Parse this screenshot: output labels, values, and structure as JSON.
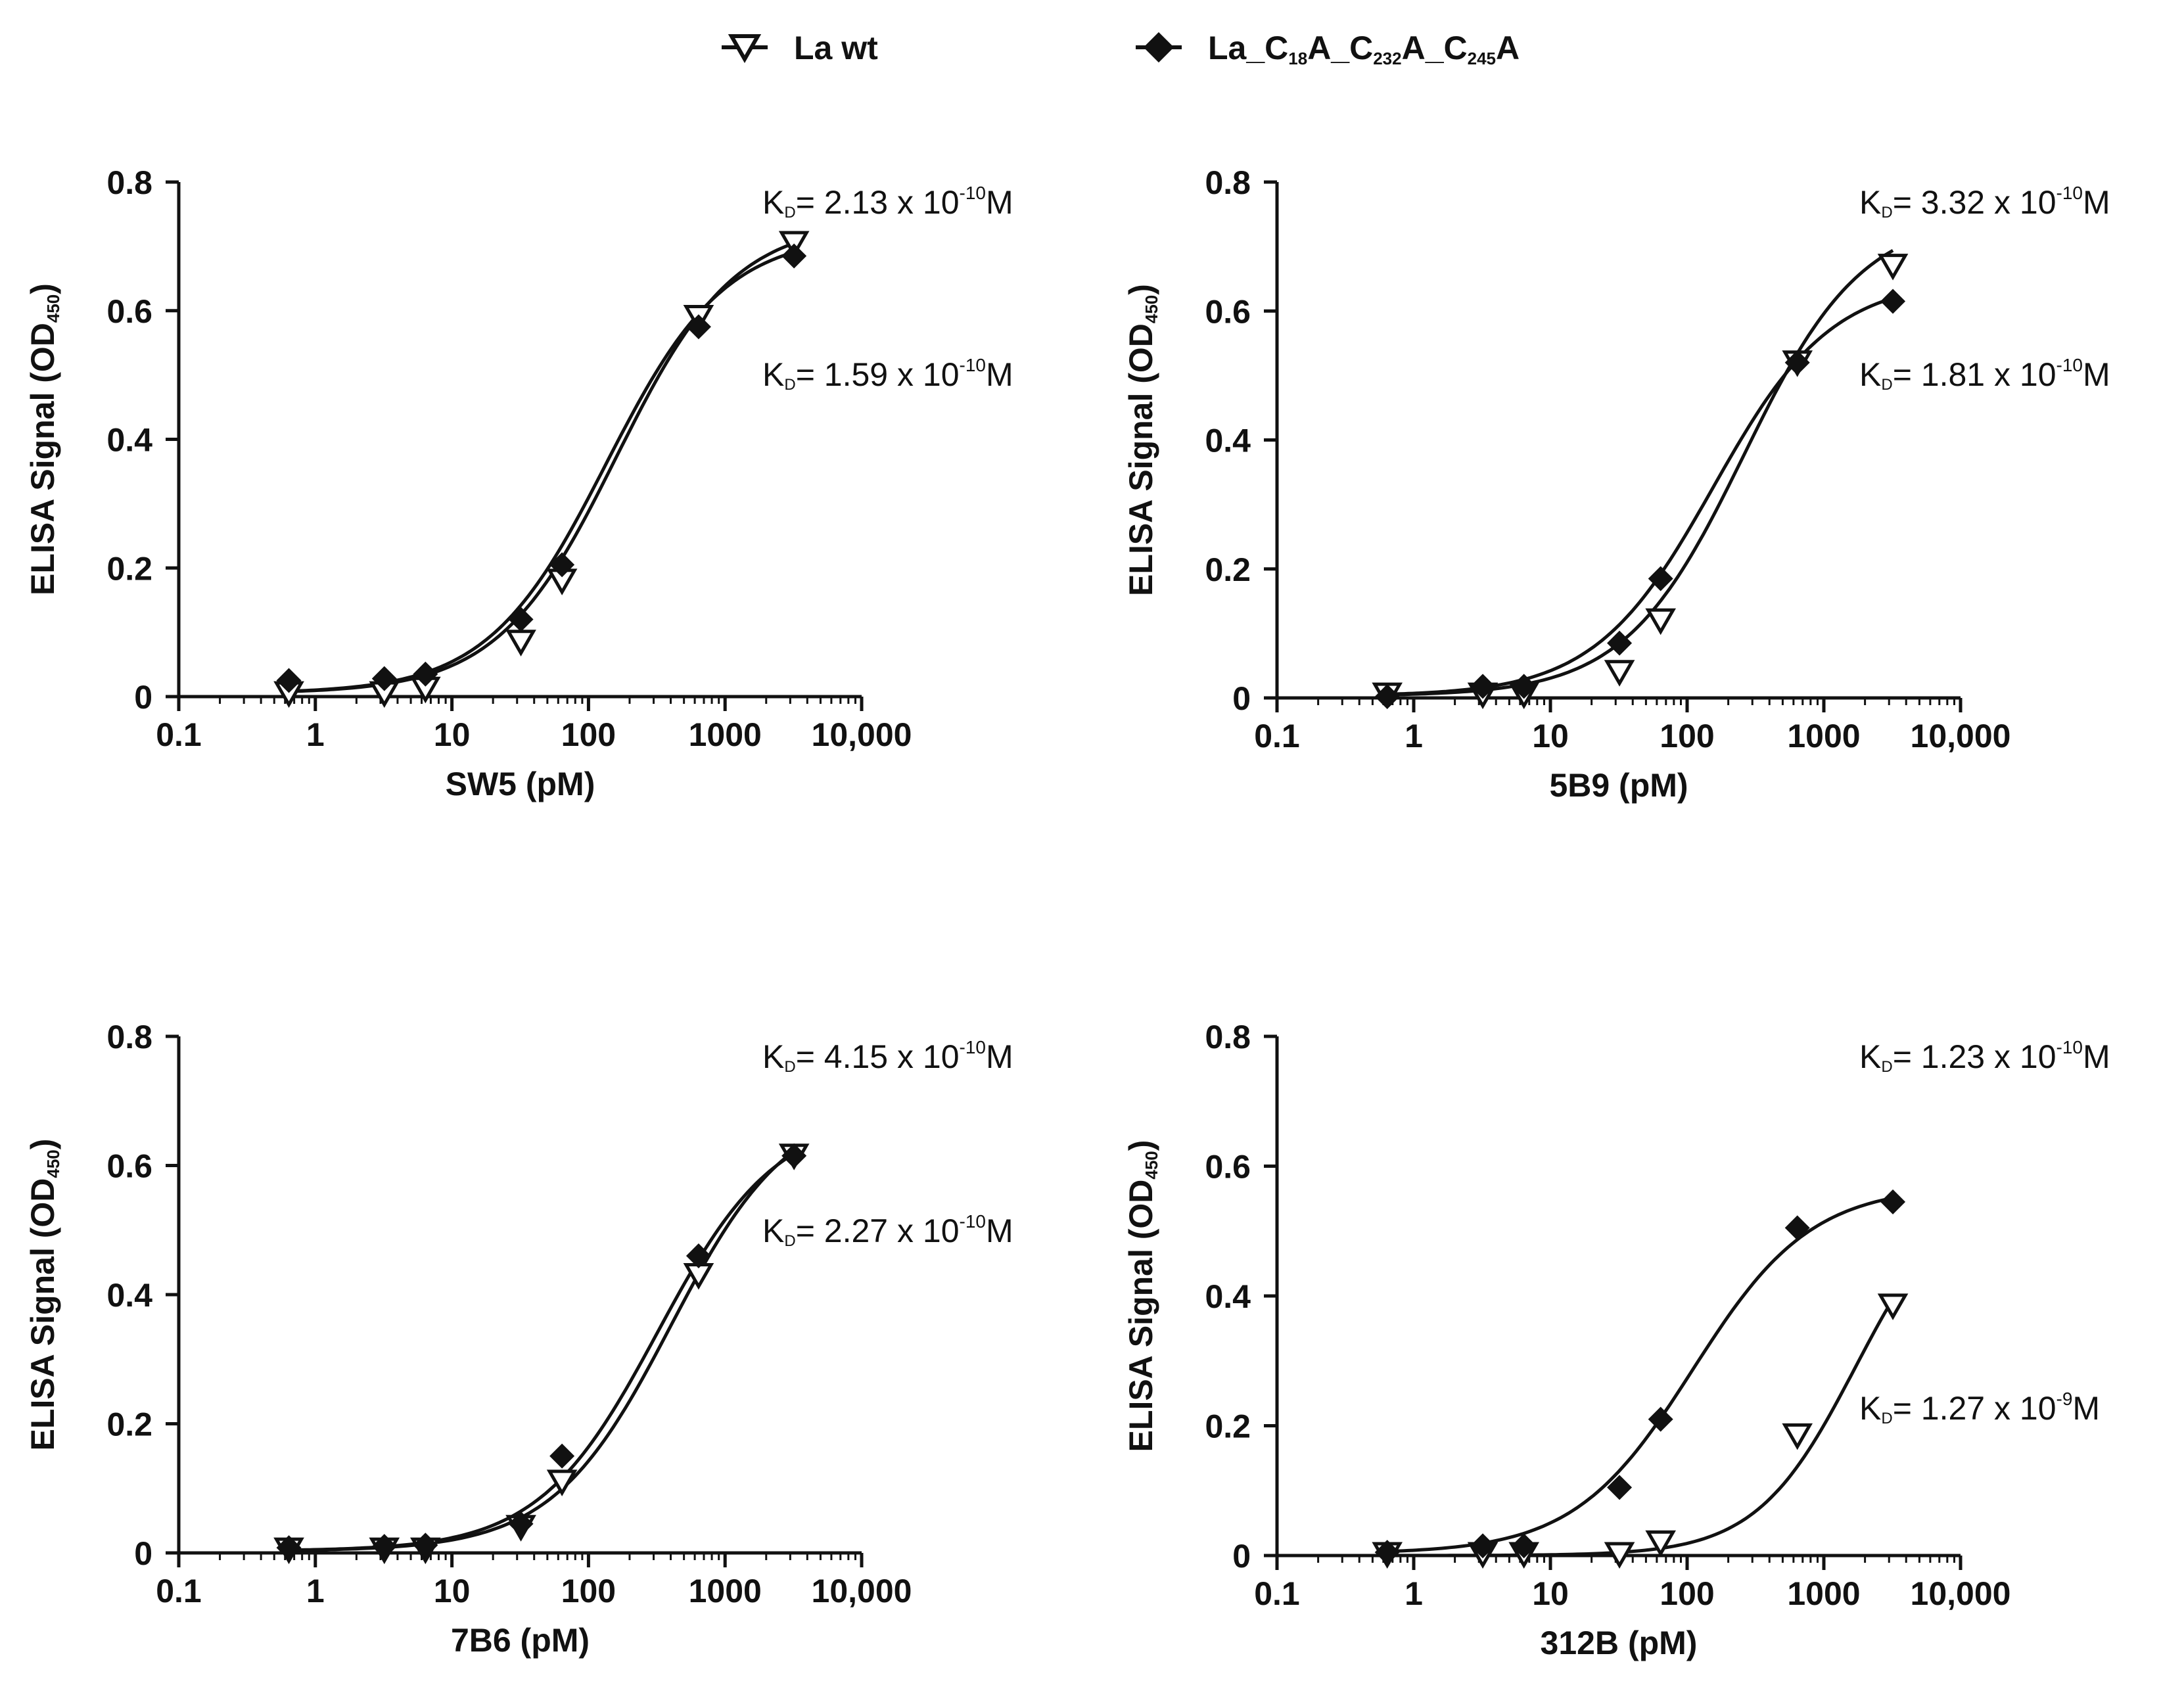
{
  "legend": {
    "series": [
      {
        "name": "La wt",
        "marker": "triangle-down-open"
      },
      {
        "name": "La_C18A_C232A_C245A",
        "marker": "diamond-filled",
        "subscripts": [
          "18",
          "232",
          "245"
        ]
      }
    ]
  },
  "chart_data": [
    {
      "type": "scatter",
      "scale": "log-x",
      "xlabel": "SW5 (pM)",
      "ylabel": "ELISA Signal (OD450)",
      "xlim": [
        0.1,
        10000
      ],
      "ylim": [
        0,
        0.8
      ],
      "x_ticks": [
        0.1,
        1,
        10,
        100,
        1000,
        10000
      ],
      "x_tick_labels": [
        "0.1",
        "1",
        "10",
        "100",
        "1000",
        "10,000"
      ],
      "y_ticks": [
        0,
        0.2,
        0.4,
        0.6,
        0.8
      ],
      "y_tick_labels": [
        "0",
        "0.2",
        "0.4",
        "0.6",
        "0.8"
      ],
      "x": [
        0.64,
        3.2,
        6.4,
        32,
        64,
        640,
        3200
      ],
      "series": [
        {
          "name": "La wt",
          "marker": "triangle-down-open",
          "values": [
            0.005,
            0.005,
            0.012,
            0.085,
            0.18,
            0.59,
            0.705
          ],
          "fit": {
            "bottom": 0.005,
            "top": 0.74,
            "ec50": 160,
            "hill": 1.0
          }
        },
        {
          "name": "La_C18A_C232A_C245A",
          "marker": "diamond-filled",
          "values": [
            0.025,
            0.028,
            0.035,
            0.12,
            0.205,
            0.575,
            0.685
          ],
          "fit": {
            "bottom": 0.005,
            "top": 0.72,
            "ec50": 135,
            "hill": 1.0
          }
        }
      ],
      "annotations": [
        {
          "label": "KD",
          "text": "= 2.13 x 10",
          "exp": "-10",
          "unit": "M"
        },
        {
          "label": "KD",
          "text": "= 1.59 x 10",
          "exp": "-10",
          "unit": "M"
        }
      ]
    },
    {
      "type": "scatter",
      "scale": "log-x",
      "xlabel": "5B9 (pM)",
      "ylabel": "ELISA Signal (OD450)",
      "xlim": [
        0.1,
        10000
      ],
      "ylim": [
        0,
        0.8
      ],
      "x_ticks": [
        0.1,
        1,
        10,
        100,
        1000,
        10000
      ],
      "x_tick_labels": [
        "0.1",
        "1",
        "10",
        "100",
        "1000",
        "10,000"
      ],
      "y_ticks": [
        0,
        0.2,
        0.4,
        0.6,
        0.8
      ],
      "y_tick_labels": [
        "0",
        "0.2",
        "0.4",
        "0.6",
        "0.8"
      ],
      "x": [
        0.64,
        3.2,
        6.4,
        32,
        64,
        640,
        3200
      ],
      "series": [
        {
          "name": "La wt",
          "marker": "triangle-down-open",
          "values": [
            0.005,
            0.005,
            0.005,
            0.04,
            0.12,
            0.52,
            0.67
          ],
          "fit": {
            "bottom": 0.003,
            "top": 0.75,
            "ec50": 260,
            "hill": 1.0
          }
        },
        {
          "name": "La_C18A_C232A_C245A",
          "marker": "diamond-filled",
          "values": [
            0.002,
            0.018,
            0.018,
            0.085,
            0.185,
            0.52,
            0.615
          ],
          "fit": {
            "bottom": 0.003,
            "top": 0.65,
            "ec50": 155,
            "hill": 1.0
          }
        }
      ],
      "annotations": [
        {
          "label": "KD",
          "text": "= 3.32 x 10",
          "exp": "-10",
          "unit": "M"
        },
        {
          "label": "KD",
          "text": "= 1.81 x 10",
          "exp": "-10",
          "unit": "M"
        }
      ]
    },
    {
      "type": "scatter",
      "scale": "log-x",
      "xlabel": "7B6 (pM)",
      "ylabel": "ELISA Signal (OD450)",
      "xlim": [
        0.1,
        10000
      ],
      "ylim": [
        0,
        0.8
      ],
      "x_ticks": [
        0.1,
        1,
        10,
        100,
        1000,
        10000
      ],
      "x_tick_labels": [
        "0.1",
        "1",
        "10",
        "100",
        "1000",
        "10,000"
      ],
      "y_ticks": [
        0,
        0.2,
        0.4,
        0.6,
        0.8
      ],
      "y_tick_labels": [
        "0",
        "0.2",
        "0.4",
        "0.6",
        "0.8"
      ],
      "x": [
        0.64,
        3.2,
        6.4,
        32,
        64,
        640,
        3200
      ],
      "series": [
        {
          "name": "La wt",
          "marker": "triangle-down-open",
          "values": [
            0.005,
            0.005,
            0.005,
            0.04,
            0.11,
            0.43,
            0.615
          ],
          "fit": {
            "bottom": 0.003,
            "top": 0.7,
            "ec50": 400,
            "hill": 1.0
          }
        },
        {
          "name": "La_C18A_C232A_C245A",
          "marker": "diamond-filled",
          "values": [
            0.008,
            0.01,
            0.012,
            0.045,
            0.15,
            0.46,
            0.615
          ],
          "fit": {
            "bottom": 0.003,
            "top": 0.68,
            "ec50": 320,
            "hill": 1.0
          }
        }
      ],
      "annotations": [
        {
          "label": "KD",
          "text": "= 4.15 x 10",
          "exp": "-10",
          "unit": "M"
        },
        {
          "label": "KD",
          "text": "= 2.27 x 10",
          "exp": "-10",
          "unit": "M"
        }
      ]
    },
    {
      "type": "scatter",
      "scale": "log-x",
      "xlabel": "312B (pM)",
      "ylabel": "ELISA Signal (OD450)",
      "xlim": [
        0.1,
        10000
      ],
      "ylim": [
        0,
        0.8
      ],
      "x_ticks": [
        0.1,
        1,
        10,
        100,
        1000,
        10000
      ],
      "x_tick_labels": [
        "0.1",
        "1",
        "10",
        "100",
        "1000",
        "10,000"
      ],
      "y_ticks": [
        0,
        0.2,
        0.4,
        0.6,
        0.8
      ],
      "y_tick_labels": [
        "0",
        "0.2",
        "0.4",
        "0.6",
        "0.8"
      ],
      "x": [
        0.64,
        3.2,
        6.4,
        32,
        64,
        640,
        3200
      ],
      "series": [
        {
          "name": "La wt",
          "marker": "triangle-down-open",
          "values": [
            0.002,
            0.002,
            0.002,
            0.002,
            0.02,
            0.185,
            0.385
          ],
          "fit": {
            "bottom": 0.0,
            "top": 0.58,
            "ec50": 1700,
            "hill": 1.2
          }
        },
        {
          "name": "La_C18A_C232A_C245A",
          "marker": "diamond-filled",
          "values": [
            0.005,
            0.015,
            0.015,
            0.105,
            0.21,
            0.505,
            0.545
          ],
          "fit": {
            "bottom": 0.003,
            "top": 0.57,
            "ec50": 110,
            "hill": 1.0
          }
        }
      ],
      "annotations": [
        {
          "label": "KD",
          "text": "= 1.23 x 10",
          "exp": "-10",
          "unit": "M"
        },
        {
          "label": "KD",
          "text": "= 1.27 x 10",
          "exp": "-9",
          "unit": "M"
        }
      ]
    }
  ]
}
